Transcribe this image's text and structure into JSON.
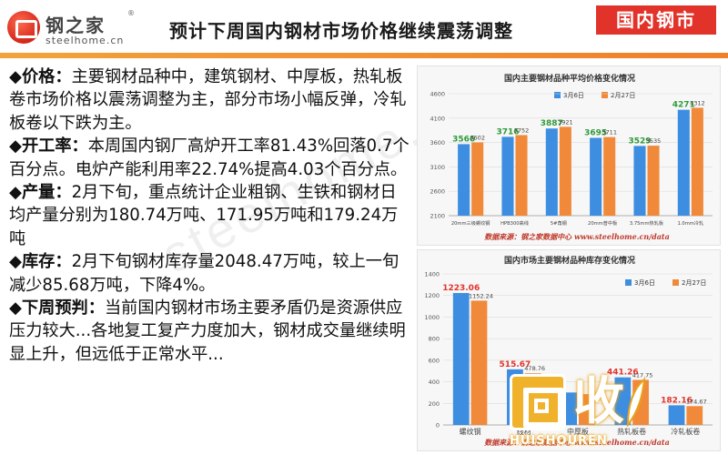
{
  "header": {
    "logo_cn": "钢之家",
    "logo_reg": "®",
    "logo_en": "steelhome.cn",
    "title": "预计下周国内钢材市场价格继续震荡调整",
    "tag": "国内钢市"
  },
  "watermark": "steelhome.cn",
  "paragraphs": [
    {
      "bullet": "◆",
      "label": "价格：",
      "text": "主要钢材品种中，建筑钢材、中厚板，热轧板卷市场价格以震荡调整为主，部分市场小幅反弹，冷轧板卷以下跌为主。"
    },
    {
      "bullet": "◆",
      "label": "开工率：",
      "text": "本周国内钢厂高炉开工率81.43%回落0.7个百分点。电炉产能利用率22.74%提高4.03个百分点。"
    },
    {
      "bullet": "◆",
      "label": "产量：",
      "text": "2月下旬，重点统计企业粗钢、生铁和钢材日均产量分别为180.74万吨、171.95万吨和179.24万吨"
    },
    {
      "bullet": "◆",
      "label": "库存：",
      "text": "2月下旬钢材库存量2048.47万吨，较上一旬减少85.68万吨，下降4%。"
    },
    {
      "bullet": "◆",
      "label": "下周预判：",
      "text": "当前国内钢材市场主要矛盾仍是资源供应压力较大...各地复工复产力度加大，钢材成交量继续明显上升，但远低于正常水平..."
    }
  ],
  "logo_overlay": {
    "char": "收",
    "text": "HUISHOUREN"
  },
  "chart_data": [
    {
      "type": "bar",
      "title": "国内主要钢材品种平均价格变化情况",
      "categories": [
        "20mm三级螺纹钢",
        "HPB300高线",
        "5#角钢",
        "20mm普中板",
        "3.75mm热轧板",
        "1.0mm冷轧"
      ],
      "series": [
        {
          "name": "3月6日",
          "values": [
            3566,
            3716,
            3887,
            3695,
            3529,
            4271
          ],
          "color": "#3d8ee0"
        },
        {
          "name": "2月27日",
          "values": [
            3602,
            3752,
            3921,
            3711,
            3535,
            4312
          ],
          "color": "#f08a3a"
        }
      ],
      "yticks": [
        2100,
        2600,
        3100,
        3600,
        4100,
        4600
      ],
      "ylim": [
        2100,
        4600
      ],
      "source": "数据来源：钢之家数据中心 www.steelhome.cn/data",
      "legend": "top",
      "grid": true
    },
    {
      "type": "bar",
      "title": "国内市场主要钢材品种库存变化情况",
      "categories": [
        "螺纹钢",
        "线材",
        "中厚板",
        "热轧板卷",
        "冷轧板卷"
      ],
      "series": [
        {
          "name": "3月6日",
          "values": [
            1223.06,
            515.67,
            301,
            441.26,
            182.16
          ],
          "color": "#3d8ee0"
        },
        {
          "name": "2月27日",
          "values": [
            1152.24,
            478.76,
            286,
            417.75,
            174.67
          ],
          "color": "#f08a3a"
        }
      ],
      "value_labels": [
        [
          "1223.06",
          "515.67",
          "",
          "441.26",
          "182.16"
        ],
        [
          "1152.24",
          "478.76",
          "",
          "417.75",
          "174.67"
        ]
      ],
      "yticks": [
        0,
        200,
        400,
        600,
        800,
        1000,
        1200,
        1400
      ],
      "ylim": [
        0,
        1400
      ],
      "source": "数据来源：钢之家数据中心 www.steelhome.cn/data",
      "legend": "top-right",
      "grid": true
    }
  ]
}
